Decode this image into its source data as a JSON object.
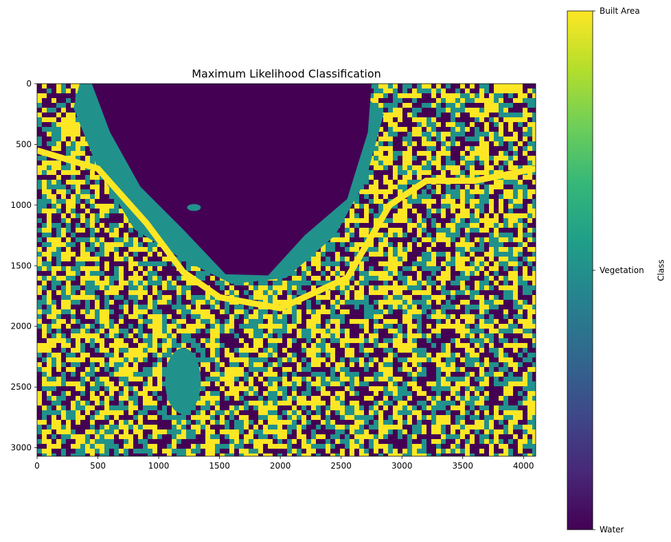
{
  "chart_data": {
    "type": "heatmap",
    "title": "Maximum Likelihood Classification",
    "xlabel": "",
    "ylabel": "",
    "xlim": [
      0,
      4100
    ],
    "ylim": [
      3070,
      0
    ],
    "x_ticks": [
      0,
      500,
      1000,
      1500,
      2000,
      2500,
      3000,
      3500,
      4000
    ],
    "y_ticks": [
      0,
      500,
      1000,
      1500,
      2000,
      2500,
      3000
    ],
    "classes": [
      "Water",
      "Vegetation",
      "Built Area"
    ],
    "colormap": "viridis",
    "class_colors": {
      "Water": "#440154",
      "Vegetation": "#21918c",
      "Built Area": "#fde725"
    },
    "colorbar": {
      "label": "Class",
      "ticks": [
        "Water",
        "Vegetation",
        "Built Area"
      ],
      "gradient": [
        "#440154",
        "#482878",
        "#3e4989",
        "#31688e",
        "#26828e",
        "#1f9e89",
        "#35b779",
        "#6ece58",
        "#b5de2b",
        "#fde725"
      ]
    },
    "grid": false
  }
}
